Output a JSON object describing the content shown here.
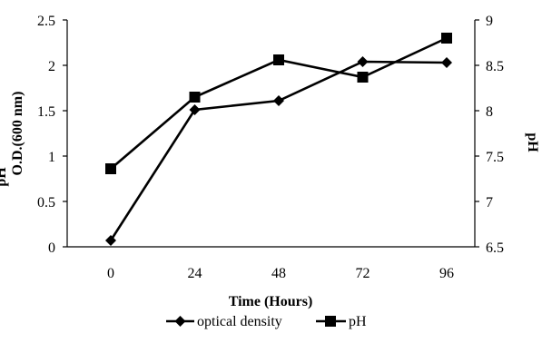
{
  "chart_data": {
    "type": "line",
    "title": "",
    "categories": [
      "0",
      "24",
      "48",
      "72",
      "96"
    ],
    "xlabel": "Time (Hours)",
    "ylabel_left_prefix": "pH",
    "ylabel_left": "O.D.(600 nm)",
    "ylabel_right": "pH",
    "ylim_left": [
      0,
      2.5
    ],
    "ylim_right": [
      6.5,
      9
    ],
    "yticks_left": [
      "0",
      "0.5",
      "1",
      "1.5",
      "2",
      "2.5"
    ],
    "yticks_right": [
      "6.5",
      "7",
      "7.5",
      "8",
      "8.5",
      "9"
    ],
    "grid": false,
    "legend_position": "bottom",
    "series": [
      {
        "name": "optical density",
        "axis": "left",
        "marker": "diamond",
        "color": "#000000",
        "values": [
          0.07,
          1.51,
          1.61,
          2.04,
          2.03
        ]
      },
      {
        "name": "pH",
        "axis": "right",
        "marker": "square",
        "color": "#000000",
        "values": [
          7.36,
          8.15,
          8.56,
          8.37,
          8.8
        ]
      }
    ]
  }
}
